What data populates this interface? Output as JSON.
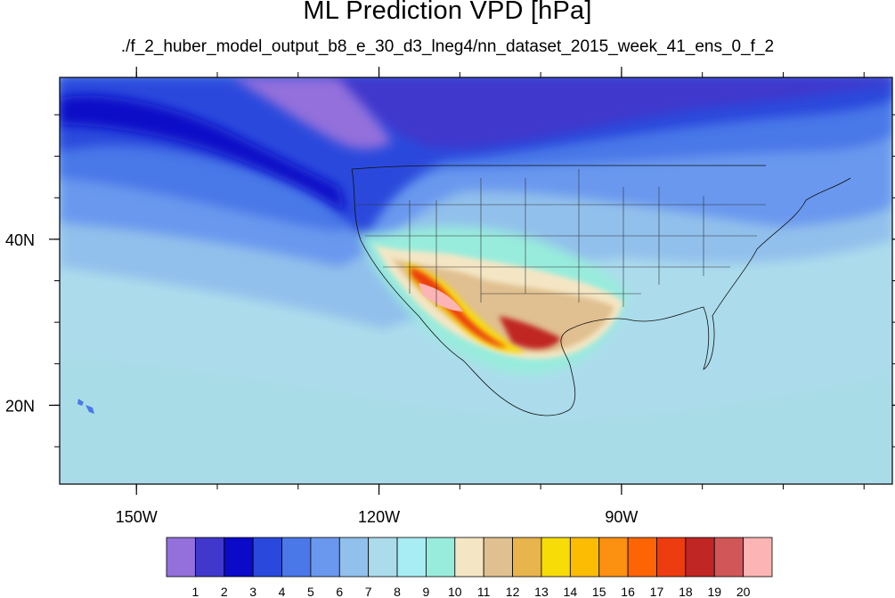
{
  "title": "ML Prediction VPD [hPa]",
  "subtitle": "./f_2_huber_model_output_b8_e_30_d3_lneg4/nn_dataset_2015_week_41_ens_0_f_2",
  "lon_ticks": [
    {
      "value": -150,
      "label": "150W"
    },
    {
      "value": -120,
      "label": "120W"
    },
    {
      "value": -90,
      "label": "90W"
    }
  ],
  "lat_ticks": [
    {
      "value": 40,
      "label": "40N"
    },
    {
      "value": 20,
      "label": "20N"
    }
  ],
  "extent": {
    "lon_min": -159.5,
    "lon_max": -56.5,
    "lat_min": 10.5,
    "lat_max": 59.5
  },
  "colorbar": {
    "colors": [
      "#9370db",
      "#4038cc",
      "#0a0ac8",
      "#2a48dc",
      "#4a78e8",
      "#6a98ee",
      "#92c0ec",
      "#acdcec",
      "#a8ecf4",
      "#98ecdc",
      "#f4e6c4",
      "#e0c090",
      "#e8b44c",
      "#f8dc08",
      "#fcbc04",
      "#fc9010",
      "#fc6404",
      "#ec3c10",
      "#c02624",
      "#d05658",
      "#fcb4b4"
    ],
    "labels": [
      "1",
      "2",
      "3",
      "4",
      "5",
      "6",
      "7",
      "8",
      "9",
      "10",
      "11",
      "12",
      "13",
      "14",
      "15",
      "16",
      "17",
      "18",
      "19",
      "20"
    ]
  }
}
